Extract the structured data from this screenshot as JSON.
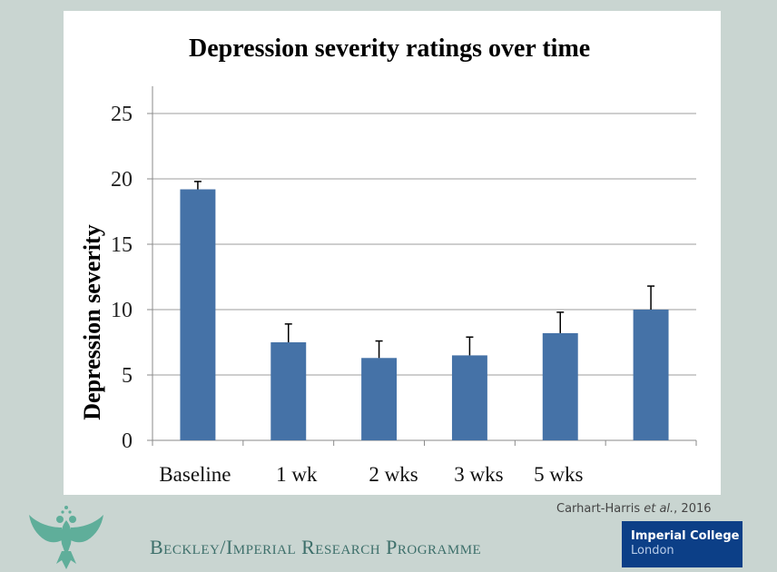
{
  "chart_data": {
    "type": "bar",
    "title": "Depression severity ratings over time",
    "xlabel": "",
    "ylabel": "Depression severity",
    "categories": [
      "Baseline",
      "1 wk",
      "2 wks",
      "3 wks",
      "5 wks",
      ""
    ],
    "values": [
      19.2,
      7.5,
      6.3,
      6.5,
      8.2,
      10.0
    ],
    "error_upper": [
      0.6,
      1.4,
      1.3,
      1.4,
      1.6,
      1.8
    ],
    "ylim": [
      0,
      25
    ],
    "yticks": [
      0,
      5,
      10,
      15,
      20,
      25
    ],
    "grid": true,
    "legend": "none",
    "bar_color": "#4572a7",
    "error_bar_color": "#000000"
  },
  "footer": {
    "citation_author": "Carhart-Harris ",
    "citation_etal": "et al.",
    "citation_year": ", 2016",
    "programme": "Beckley/Imperial Research Programme",
    "logo_line1": "Imperial College",
    "logo_line2": "London"
  },
  "colors": {
    "background": "#c9d5d1",
    "logo_blue": "#0c3f87",
    "programme_text": "#3d6f6a",
    "eagle": "#5fae9a"
  }
}
